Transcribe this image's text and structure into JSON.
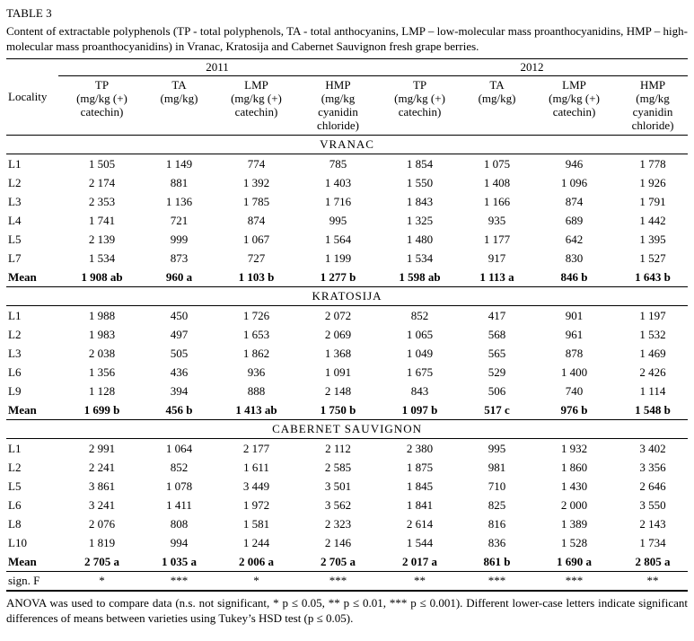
{
  "table_label": "TABLE 3",
  "caption": "Content of extractable polyphenols (TP - total polyphenols, TA - total anthocyanins, LMP – low-molecular mass proanthocyanidins, HMP – high-molecular mass proanthocyanidins) in Vranac, Kratosija and Cabernet Sauvignon fresh grape berries.",
  "header": {
    "locality": "Locality",
    "years": [
      "2011",
      "2012"
    ],
    "columns": [
      "TP\n(mg/kg (+)\ncatechin)",
      "TA\n(mg/kg)",
      "LMP\n(mg/kg (+)\ncatechin)",
      "HMP\n(mg/kg\ncyanidin\nchloride)",
      "TP\n(mg/kg (+)\ncatechin)",
      "TA\n(mg/kg)",
      "LMP\n(mg/kg (+)\ncatechin)",
      "HMP\n(mg/kg\ncyanidin\nchloride)"
    ]
  },
  "sections": [
    {
      "name": "VRANAC",
      "rows": [
        {
          "locality": "L1",
          "values": [
            "1 505",
            "1 149",
            "774",
            "785",
            "1 854",
            "1 075",
            "946",
            "1 778"
          ]
        },
        {
          "locality": "L2",
          "values": [
            "2 174",
            "881",
            "1 392",
            "1 403",
            "1 550",
            "1 408",
            "1 096",
            "1 926"
          ]
        },
        {
          "locality": "L3",
          "values": [
            "2 353",
            "1 136",
            "1 785",
            "1 716",
            "1 843",
            "1 166",
            "874",
            "1 791"
          ]
        },
        {
          "locality": "L4",
          "values": [
            "1 741",
            "721",
            "874",
            "995",
            "1 325",
            "935",
            "689",
            "1 442"
          ]
        },
        {
          "locality": "L5",
          "values": [
            "2 139",
            "999",
            "1 067",
            "1 564",
            "1 480",
            "1 177",
            "642",
            "1 395"
          ]
        },
        {
          "locality": "L7",
          "values": [
            "1 534",
            "873",
            "727",
            "1 199",
            "1 534",
            "917",
            "830",
            "1 527"
          ]
        }
      ],
      "mean": {
        "label": "Mean",
        "values": [
          "1 908 ab",
          "960 a",
          "1 103 b",
          "1 277 b",
          "1 598 ab",
          "1 113 a",
          "846 b",
          "1 643 b"
        ]
      }
    },
    {
      "name": "KRATOSIJA",
      "rows": [
        {
          "locality": "L1",
          "values": [
            "1 988",
            "450",
            "1 726",
            "2 072",
            "852",
            "417",
            "901",
            "1 197"
          ]
        },
        {
          "locality": "L2",
          "values": [
            "1 983",
            "497",
            "1 653",
            "2 069",
            "1 065",
            "568",
            "961",
            "1 532"
          ]
        },
        {
          "locality": "L3",
          "values": [
            "2 038",
            "505",
            "1 862",
            "1 368",
            "1 049",
            "565",
            "878",
            "1 469"
          ]
        },
        {
          "locality": "L6",
          "values": [
            "1 356",
            "436",
            "936",
            "1 091",
            "1 675",
            "529",
            "1 400",
            "2 426"
          ]
        },
        {
          "locality": "L9",
          "values": [
            "1 128",
            "394",
            "888",
            "2 148",
            "843",
            "506",
            "740",
            "1 114"
          ]
        }
      ],
      "mean": {
        "label": "Mean",
        "values": [
          "1 699 b",
          "456 b",
          "1 413 ab",
          "1 750 b",
          "1 097 b",
          "517 c",
          "976 b",
          "1 548 b"
        ]
      }
    },
    {
      "name": "CABERNET SAUVIGNON",
      "rows": [
        {
          "locality": "L1",
          "values": [
            "2 991",
            "1 064",
            "2 177",
            "2 112",
            "2 380",
            "995",
            "1 932",
            "3 402"
          ]
        },
        {
          "locality": "L2",
          "values": [
            "2 241",
            "852",
            "1 611",
            "2 585",
            "1 875",
            "981",
            "1 860",
            "3 356"
          ]
        },
        {
          "locality": "L5",
          "values": [
            "3 861",
            "1 078",
            "3 449",
            "3 501",
            "1 845",
            "710",
            "1 430",
            "2 646"
          ]
        },
        {
          "locality": "L6",
          "values": [
            "3 241",
            "1 411",
            "1 972",
            "3 562",
            "1 841",
            "825",
            "2 000",
            "3 550"
          ]
        },
        {
          "locality": "L8",
          "values": [
            "2 076",
            "808",
            "1 581",
            "2 323",
            "2 614",
            "816",
            "1 389",
            "2 143"
          ]
        },
        {
          "locality": "L10",
          "values": [
            "1 819",
            "994",
            "1 244",
            "2 146",
            "1 544",
            "836",
            "1 528",
            "1 734"
          ]
        }
      ],
      "mean": {
        "label": "Mean",
        "values": [
          "2 705 a",
          "1 035 a",
          "2 006 a",
          "2 705 a",
          "2 017 a",
          "861 b",
          "1 690 a",
          "2 805 a"
        ]
      }
    }
  ],
  "sign_f": {
    "label": "sign. F",
    "values": [
      "*",
      "***",
      "*",
      "***",
      "**",
      "***",
      "***",
      "**"
    ]
  },
  "footnote": "ANOVA was used to compare data (n.s. not significant, * p ≤ 0.05, ** p ≤ 0.01, *** p ≤ 0.001). Different lower-case letters indicate significant differences of means between varieties using Tukey’s HSD test (p ≤ 0.05)."
}
